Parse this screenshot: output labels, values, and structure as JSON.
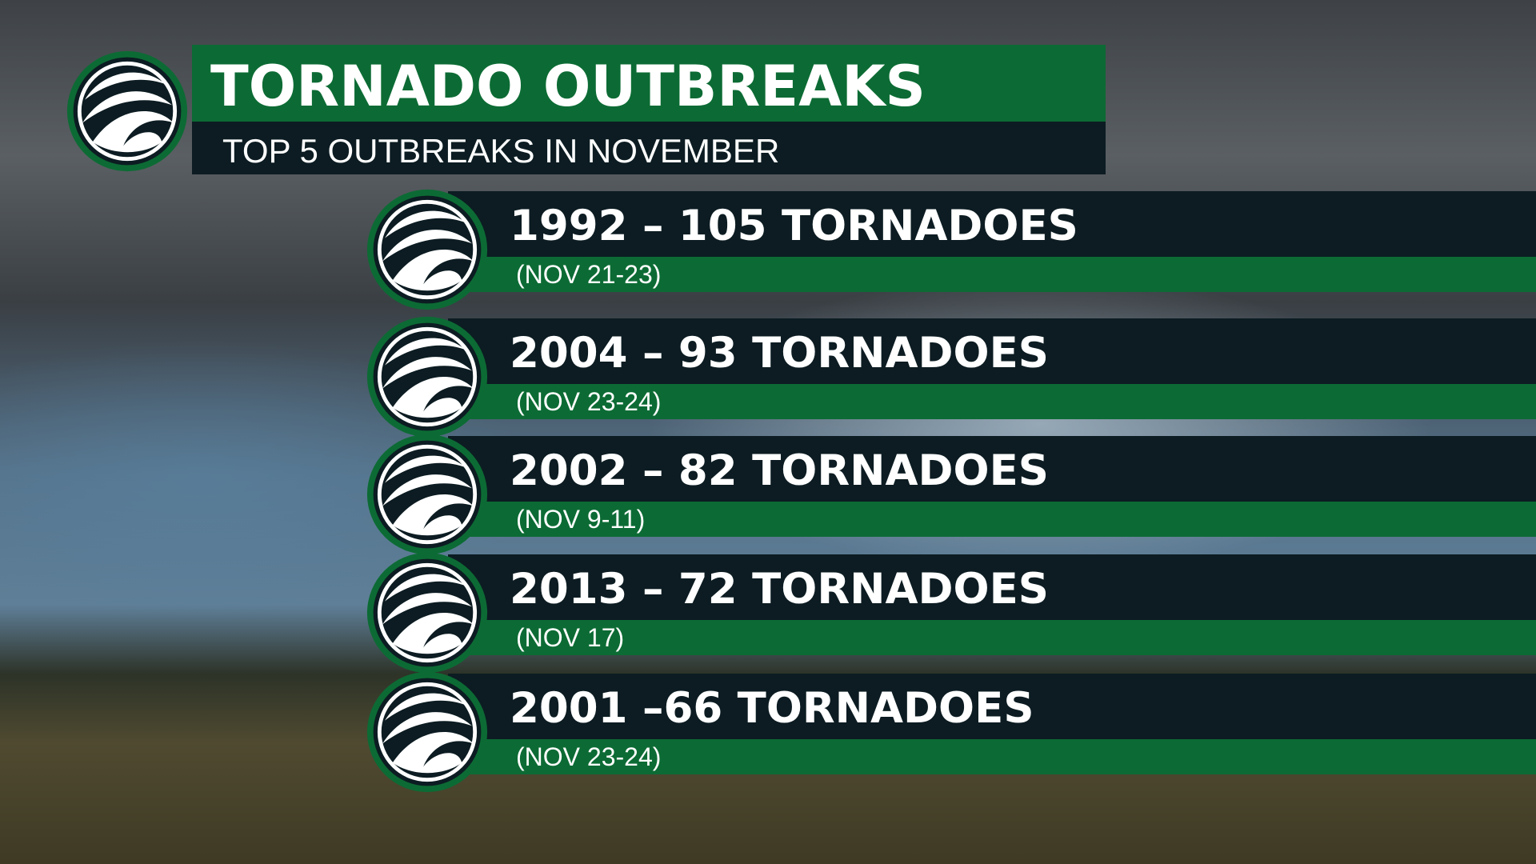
{
  "header": {
    "title": "TORNADO OUTBREAKS",
    "subtitle": "TOP 5 OUTBREAKS IN NOVEMBER"
  },
  "items": [
    {
      "headline": "1992 – 105 TORNADOES",
      "dates": "(NOV 21-23)"
    },
    {
      "headline": "2004 – 93 TORNADOES",
      "dates": "(NOV 23-24)"
    },
    {
      "headline": "2002 – 82 TORNADOES",
      "dates": "(NOV 9-11)"
    },
    {
      "headline": "2013 – 72 TORNADOES",
      "dates": "(NOV 17)"
    },
    {
      "headline": "2001 –66 TORNADOES",
      "dates": "(NOV 23-24)"
    }
  ]
}
